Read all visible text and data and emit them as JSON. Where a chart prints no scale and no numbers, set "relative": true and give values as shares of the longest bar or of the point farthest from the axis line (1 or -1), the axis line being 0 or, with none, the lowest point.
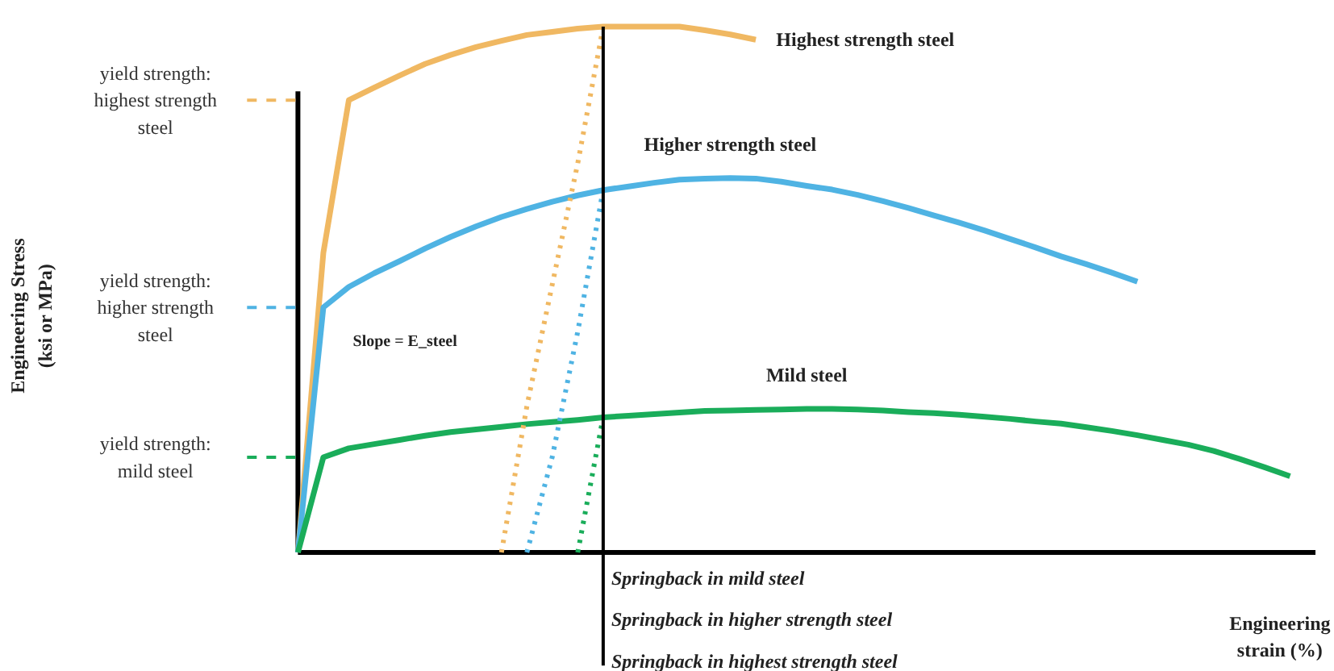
{
  "chart_data": {
    "type": "line",
    "relative": true,
    "xlabel": "Engineering strain (%)",
    "categories": [
      null,
      null,
      null,
      null,
      null,
      null,
      null,
      null,
      null,
      null,
      null,
      null,
      null,
      null,
      null,
      null,
      null,
      null,
      null,
      null,
      null,
      null,
      null,
      null,
      null,
      null,
      null,
      null,
      null,
      null,
      null,
      null,
      null,
      null,
      null,
      null,
      null,
      null,
      null,
      null,
      null
    ],
    "series": [
      {
        "name": "Highest strength steel",
        "color": "#f0b862",
        "values": [
          0,
          0.57,
          0.86,
          0.884,
          0.907,
          0.929,
          0.946,
          0.961,
          0.973,
          0.984,
          0.99,
          0.996,
          1.0,
          1.0,
          1.0,
          1.0,
          0.993,
          0.985,
          0.975,
          null,
          null,
          null,
          null,
          null,
          null,
          null,
          null,
          null,
          null,
          null,
          null,
          null,
          null,
          null,
          null,
          null,
          null,
          null,
          null,
          null,
          null
        ]
      },
      {
        "name": "Higher strength steel",
        "color": "#4fb3e3",
        "values": [
          0,
          0.466,
          0.505,
          0.531,
          0.554,
          0.578,
          0.6,
          0.62,
          0.638,
          0.653,
          0.667,
          0.679,
          0.689,
          0.696,
          0.703,
          0.709,
          0.711,
          0.712,
          0.711,
          0.705,
          0.697,
          0.69,
          0.68,
          0.668,
          0.655,
          0.641,
          0.627,
          0.612,
          0.596,
          0.58,
          0.563,
          0.548,
          0.532,
          0.515,
          null,
          null,
          null,
          null,
          null,
          null,
          null
        ]
      },
      {
        "name": "Mild steel",
        "color": "#1aad5a",
        "values": [
          0,
          0.181,
          0.198,
          0.206,
          0.214,
          0.222,
          0.229,
          0.234,
          0.239,
          0.244,
          0.248,
          0.252,
          0.257,
          0.26,
          0.263,
          0.266,
          0.269,
          0.27,
          0.271,
          0.272,
          0.273,
          0.273,
          0.272,
          0.27,
          0.267,
          0.265,
          0.262,
          0.258,
          0.254,
          0.249,
          0.245,
          0.238,
          0.231,
          0.223,
          0.214,
          0.205,
          0.193,
          0.178,
          0.162,
          0.145,
          null
        ]
      },
      {
        "color": "#f0b862",
        "line_style": "dotted",
        "values": [
          null,
          null,
          null,
          null,
          null,
          null,
          null,
          null,
          0,
          0.278,
          0.51,
          0.74,
          1.0,
          null,
          null,
          null,
          null,
          null,
          null,
          null,
          null,
          null,
          null,
          null,
          null,
          null,
          null,
          null,
          null,
          null,
          null,
          null,
          null,
          null,
          null,
          null,
          null,
          null,
          null,
          null,
          null
        ]
      },
      {
        "color": "#4fb3e3",
        "line_style": "dotted",
        "values": [
          null,
          null,
          null,
          null,
          null,
          null,
          null,
          null,
          null,
          0,
          0.182,
          0.42,
          0.69,
          null,
          null,
          null,
          null,
          null,
          null,
          null,
          null,
          null,
          null,
          null,
          null,
          null,
          null,
          null,
          null,
          null,
          null,
          null,
          null,
          null,
          null,
          null,
          null,
          null,
          null,
          null,
          null
        ]
      },
      {
        "color": "#1aad5a",
        "line_style": "dotted",
        "values": [
          null,
          null,
          null,
          null,
          null,
          null,
          null,
          null,
          null,
          null,
          null,
          0,
          0.258,
          null,
          null,
          null,
          null,
          null,
          null,
          null,
          null,
          null,
          null,
          null,
          null,
          null,
          null,
          null,
          null,
          null,
          null,
          null,
          null,
          null,
          null,
          null,
          null,
          null,
          null,
          null,
          null
        ]
      }
    ],
    "annotations": [
      "yield strength: highest strength steel",
      "yield strength: higher strength steel",
      "yield strength: mild steel",
      "Slope = E_steel",
      "Springback in mild steel",
      "Springback in higher strength steel",
      "Springback in highest strength steel",
      "Engineering Stress (ksi or MPa)"
    ]
  }
}
